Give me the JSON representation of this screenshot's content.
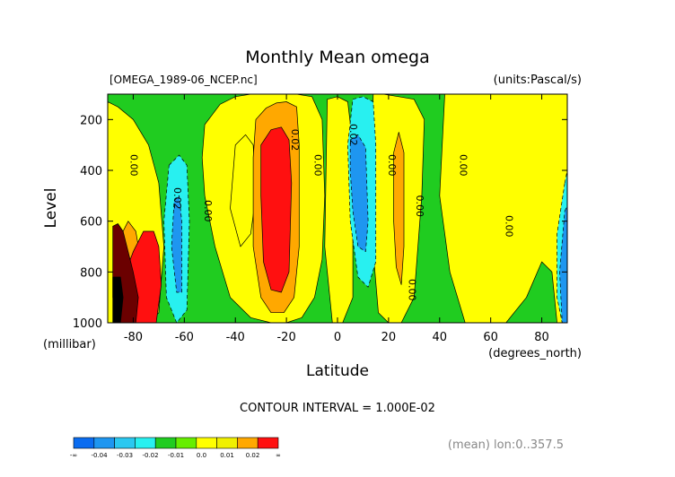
{
  "chart_data": {
    "type": "heatmap",
    "title": "Monthly Mean omega",
    "file_label": "[OMEGA_1989-06_NCEP.nc]",
    "units_label": "(units:Pascal/s)",
    "xlabel": "Latitude",
    "x_unit_label": "(degrees_north)",
    "ylabel": "Level",
    "y_unit_label": "(millibar)",
    "xlim": [
      -90,
      90
    ],
    "ylim": [
      1000,
      100
    ],
    "x_ticks": [
      -80,
      -60,
      -40,
      -20,
      0,
      20,
      40,
      60,
      80
    ],
    "x_tick_labels": [
      "-80",
      "-60",
      "-40",
      "-20",
      "0",
      "20",
      "40",
      "60",
      "80"
    ],
    "y_ticks": [
      200,
      400,
      600,
      800,
      1000
    ],
    "y_tick_labels": [
      "200",
      "400",
      "600",
      "800",
      "1000"
    ],
    "contour_interval_label": "CONTOUR INTERVAL = 1.000E-02",
    "footer_label": "(mean) lon:0..357.5",
    "colorbar": {
      "colors": [
        "#0a6cf0",
        "#1e96f0",
        "#2bc8f0",
        "#28f0f0",
        "#20cc20",
        "#66ee00",
        "#ffff00",
        "#f0f000",
        "#ffa800",
        "#ff1010"
      ],
      "tick_labels": [
        "-∞",
        "-0.04",
        "-0.03",
        "-0.02",
        "-0.01",
        "0.0",
        "0.01",
        "0.02",
        "∞"
      ]
    },
    "contour_labels": [
      {
        "text": "0.00",
        "lat": -81,
        "lev": 380
      },
      {
        "text": "0.02",
        "lat": -64,
        "lev": 510
      },
      {
        "text": "0.00",
        "lat": -52,
        "lev": 560
      },
      {
        "text": "0.02",
        "lat": -18,
        "lev": 280
      },
      {
        "text": "0.00",
        "lat": -9,
        "lev": 380
      },
      {
        "text": "0.02",
        "lat": 5,
        "lev": 260
      },
      {
        "text": "0.00",
        "lat": 20,
        "lev": 380
      },
      {
        "text": "0.00",
        "lat": 31,
        "lev": 540
      },
      {
        "text": "0.00",
        "lat": 28,
        "lev": 870
      },
      {
        "text": "0.00",
        "lat": 48,
        "lev": 380
      },
      {
        "text": "0.00",
        "lat": 66,
        "lev": 620
      }
    ],
    "regions": [
      {
        "value": -0.01,
        "color": "#20cc20",
        "shape": "rect",
        "lat": [
          -90,
          90
        ],
        "lev": [
          100,
          1000
        ]
      },
      {
        "value": 0.0,
        "color": "#ffff00",
        "lat": [
          -90,
          -86,
          -82,
          -78,
          -74,
          -70,
          -68,
          -70,
          -74,
          -80,
          -86,
          -90
        ],
        "lev": [
          1000,
          1000,
          1000,
          1000,
          1000,
          960,
          700,
          450,
          300,
          200,
          150,
          130
        ]
      },
      {
        "value": 0.0,
        "color": "#ffff00",
        "lat": [
          -52,
          -46,
          -40,
          -34,
          -28,
          -22,
          -16,
          -10,
          -6,
          -5,
          -6,
          -9,
          -14,
          -20,
          -26,
          -34,
          -42,
          -48,
          -52,
          -53
        ],
        "lev": [
          220,
          140,
          110,
          100,
          100,
          100,
          100,
          110,
          200,
          500,
          750,
          900,
          980,
          1000,
          1000,
          980,
          900,
          700,
          500,
          350
        ]
      },
      {
        "value": 0.0,
        "color": "#ffff00",
        "lat": [
          -40,
          -36,
          -33,
          -32,
          -34,
          -38,
          -42
        ],
        "lev": [
          300,
          260,
          300,
          500,
          650,
          700,
          550
        ]
      },
      {
        "value": 0.0,
        "color": "#ffff00",
        "lat": [
          -4,
          0,
          4,
          6,
          6,
          2,
          -2,
          -5
        ],
        "lev": [
          120,
          110,
          130,
          300,
          900,
          1000,
          1000,
          700
        ]
      },
      {
        "value": 0.0,
        "color": "#ffff00",
        "lat": [
          14,
          18,
          24,
          30,
          34,
          33,
          30,
          25,
          20,
          16,
          13
        ],
        "lev": [
          100,
          100,
          110,
          120,
          200,
          500,
          900,
          1000,
          1000,
          960,
          600
        ]
      },
      {
        "value": 0.0,
        "color": "#ffff00",
        "lat": [
          42,
          48,
          54,
          60,
          66,
          72,
          78,
          84,
          90,
          90,
          86,
          84,
          80,
          74,
          66,
          58,
          50,
          44,
          40
        ],
        "lev": [
          100,
          100,
          100,
          100,
          100,
          100,
          100,
          100,
          100,
          1000,
          1000,
          800,
          760,
          900,
          1000,
          1000,
          1000,
          800,
          500
        ]
      },
      {
        "value": 0.01,
        "color": "#ffa800",
        "lat": [
          -32,
          -28,
          -24,
          -20,
          -16,
          -15,
          -15,
          -17,
          -21,
          -26,
          -30,
          -33,
          -33
        ],
        "lev": [
          200,
          155,
          135,
          130,
          150,
          300,
          700,
          900,
          960,
          960,
          900,
          700,
          350
        ]
      },
      {
        "value": 0.01,
        "color": "#ffa800",
        "lat": [
          22,
          24,
          26,
          26,
          25,
          23,
          22
        ],
        "lev": [
          330,
          250,
          330,
          700,
          850,
          780,
          600
        ]
      },
      {
        "value": 0.01,
        "color": "#ffa800",
        "lat": [
          -85,
          -82,
          -79,
          -77,
          -78,
          -82,
          -85
        ],
        "lev": [
          660,
          600,
          640,
          760,
          960,
          1000,
          980
        ]
      },
      {
        "value": 0.02,
        "color": "#ff1010",
        "lat": [
          -30,
          -26,
          -22,
          -19,
          -18,
          -19,
          -22,
          -26,
          -29,
          -30
        ],
        "lev": [
          300,
          240,
          230,
          280,
          450,
          800,
          880,
          870,
          760,
          500
        ]
      },
      {
        "value": 0.02,
        "color": "#ff1010",
        "lat": [
          -80,
          -76,
          -72,
          -70,
          -69,
          -71,
          -75,
          -80,
          -84,
          -86
        ],
        "lev": [
          720,
          640,
          640,
          700,
          850,
          1000,
          1000,
          1000,
          980,
          880
        ]
      },
      {
        "value": 0.04,
        "color": "#6b0000",
        "lat": [
          -88,
          -86,
          -84,
          -82,
          -80,
          -78,
          -79,
          -82,
          -86,
          -88
        ],
        "lev": [
          620,
          610,
          640,
          720,
          800,
          900,
          1000,
          1000,
          1000,
          900
        ]
      },
      {
        "value": 0.06,
        "color": "#000000",
        "lat": [
          -88,
          -85,
          -84,
          -85,
          -88
        ],
        "lev": [
          820,
          820,
          900,
          1000,
          1000
        ]
      },
      {
        "value": -0.02,
        "color": "#28f0f0",
        "lat": [
          -66,
          -62,
          -59,
          -58,
          -59,
          -63,
          -67,
          -68
        ],
        "lev": [
          380,
          340,
          380,
          600,
          950,
          1000,
          900,
          600
        ]
      },
      {
        "value": -0.02,
        "color": "#28f0f0",
        "lat": [
          6,
          10,
          14,
          15,
          15,
          12,
          8,
          5,
          4
        ],
        "lev": [
          120,
          110,
          130,
          300,
          760,
          860,
          820,
          600,
          300
        ]
      },
      {
        "value": -0.02,
        "color": "#28f0f0",
        "lat": [
          89,
          90,
          90,
          88,
          86,
          86
        ],
        "lev": [
          450,
          400,
          1000,
          1000,
          900,
          650
        ]
      },
      {
        "value": -0.03,
        "color": "#1e96f0",
        "lat": [
          -64,
          -62,
          -61,
          -61,
          -63,
          -65
        ],
        "lev": [
          520,
          500,
          600,
          880,
          880,
          700
        ]
      },
      {
        "value": -0.03,
        "color": "#1e96f0",
        "lat": [
          5,
          8,
          11,
          12,
          11,
          8,
          6,
          5
        ],
        "lev": [
          280,
          260,
          310,
          600,
          720,
          700,
          560,
          400
        ]
      },
      {
        "value": -0.03,
        "color": "#1e96f0",
        "lat": [
          89,
          90,
          90,
          88,
          87
        ],
        "lev": [
          560,
          540,
          1000,
          1000,
          800
        ]
      }
    ]
  }
}
